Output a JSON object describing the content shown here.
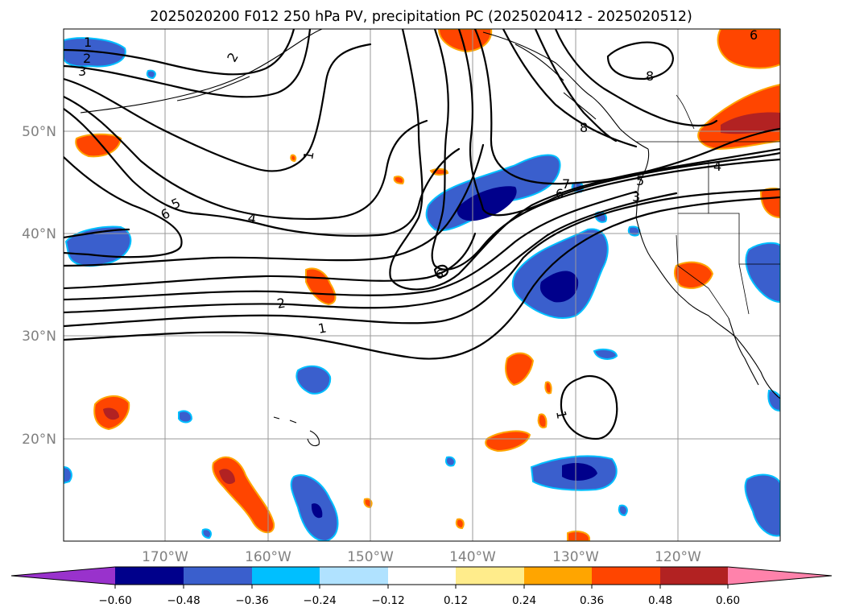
{
  "title": "2025020200 F012 250 hPa PV, precipitation PC (2025020412 - 2025020512)",
  "map": {
    "lat_labels": [
      "50°N",
      "40°N",
      "30°N",
      "20°N"
    ],
    "lon_labels": [
      "170°W",
      "160°W",
      "150°W",
      "140°W",
      "130°W",
      "120°W"
    ]
  },
  "colorbar": {
    "colors": [
      "#9932cc",
      "#00008b",
      "#3a5fcd",
      "#00bfff",
      "#b0e2ff",
      "#ffffff",
      "#ffec8b",
      "#ffa500",
      "#ff4500",
      "#b22222",
      "#ff82ab"
    ],
    "tick_labels": [
      "−0.60",
      "−0.48",
      "−0.36",
      "−0.24",
      "−0.12",
      "0.12",
      "0.24",
      "0.36",
      "0.48",
      "0.60"
    ]
  },
  "contour_labels": [
    "1",
    "2",
    "3",
    "2",
    "1",
    "5",
    "6",
    "4",
    "8",
    "8",
    "7",
    "6",
    "5",
    "3",
    "4",
    "6",
    "2",
    "1",
    "1",
    "6"
  ]
}
